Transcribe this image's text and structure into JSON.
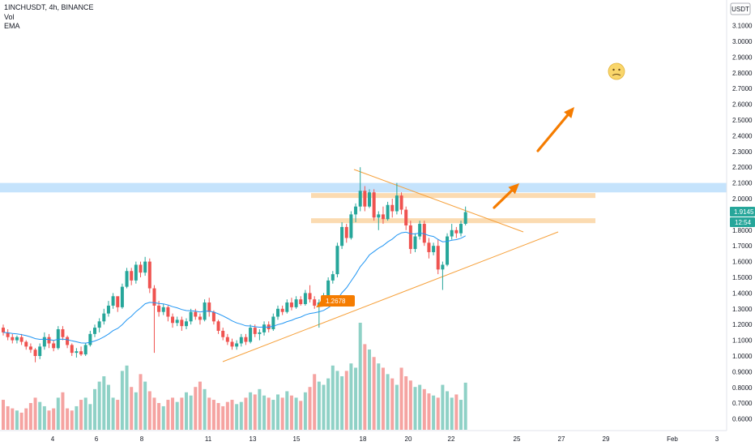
{
  "header": {
    "symbol_line": "1INCHUSDT, 4h, BINANCE",
    "indicator_vol": "Vol",
    "indicator_ema": "EMA"
  },
  "price_scale": {
    "currency": "USDT",
    "ticks": [
      "3.1000",
      "3.0000",
      "2.9000",
      "2.8000",
      "2.7000",
      "2.6000",
      "2.5000",
      "2.4000",
      "2.3000",
      "2.2000",
      "2.1000",
      "2.0000",
      "1.8000",
      "1.7000",
      "1.6000",
      "1.5000",
      "1.4000",
      "1.3000",
      "1.2000",
      "1.1000",
      "1.0000",
      "0.9000",
      "0.8000",
      "0.7000",
      "0.6000"
    ]
  },
  "time_scale": {
    "ticks": [
      "4",
      "6",
      "8",
      "11",
      "13",
      "15",
      "18",
      "20",
      "22",
      "25",
      "27",
      "29",
      "Feb",
      "3"
    ]
  },
  "badges": {
    "last_price": "1.9145",
    "countdown": "12:54",
    "marked_price": "1.2678"
  },
  "colors": {
    "up": "#26a69a",
    "down": "#ef5350",
    "vol_up": "#8fd1c6",
    "vol_down": "#f5a3a1",
    "ema": "#2196f3",
    "drawing": "#f6a03a",
    "arrow": "#f57c00",
    "zone_blue": "#bbdefb",
    "zone_orange": "#fbd7a8"
  },
  "icons": {
    "emoji": "cold-sweat-smiley-icon"
  },
  "chart_data": {
    "type": "candlestick",
    "symbol": "1INCHUSDT",
    "interval": "4h",
    "exchange": "BINANCE",
    "x_axis_ticks": [
      "4",
      "6",
      "8",
      "11",
      "13",
      "15",
      "18",
      "20",
      "22",
      "25",
      "27",
      "29",
      "Feb",
      "3"
    ],
    "y_range": [
      0.55,
      3.2
    ],
    "last_price": 1.9145,
    "marked_price": 1.2678,
    "resistance_zone": [
      2.04,
      2.1
    ],
    "horizontal_levels": [
      2.02,
      1.86
    ],
    "candles_ohlc": [
      [
        1.18,
        1.2,
        1.13,
        1.15
      ],
      [
        1.15,
        1.17,
        1.1,
        1.12
      ],
      [
        1.12,
        1.14,
        1.08,
        1.1
      ],
      [
        1.1,
        1.13,
        1.08,
        1.12
      ],
      [
        1.12,
        1.14,
        1.07,
        1.09
      ],
      [
        1.09,
        1.1,
        1.04,
        1.06
      ],
      [
        1.06,
        1.08,
        1.02,
        1.04
      ],
      [
        1.04,
        1.05,
        0.96,
        1.0
      ],
      [
        1.0,
        1.08,
        0.98,
        1.06
      ],
      [
        1.06,
        1.15,
        1.04,
        1.12
      ],
      [
        1.12,
        1.14,
        1.05,
        1.08
      ],
      [
        1.08,
        1.1,
        1.03,
        1.05
      ],
      [
        1.05,
        1.19,
        1.04,
        1.17
      ],
      [
        1.17,
        1.19,
        1.1,
        1.12
      ],
      [
        1.12,
        1.13,
        1.05,
        1.07
      ],
      [
        1.07,
        1.08,
        1.0,
        1.02
      ],
      [
        1.02,
        1.05,
        0.99,
        1.03
      ],
      [
        1.03,
        1.06,
        1.0,
        1.01
      ],
      [
        1.01,
        1.08,
        1.0,
        1.07
      ],
      [
        1.07,
        1.16,
        1.06,
        1.14
      ],
      [
        1.14,
        1.2,
        1.12,
        1.18
      ],
      [
        1.18,
        1.24,
        1.15,
        1.22
      ],
      [
        1.22,
        1.3,
        1.2,
        1.27
      ],
      [
        1.27,
        1.35,
        1.25,
        1.32
      ],
      [
        1.32,
        1.4,
        1.3,
        1.38
      ],
      [
        1.38,
        1.36,
        1.28,
        1.31
      ],
      [
        1.31,
        1.46,
        1.3,
        1.44
      ],
      [
        1.44,
        1.56,
        1.43,
        1.54
      ],
      [
        1.54,
        1.56,
        1.45,
        1.48
      ],
      [
        1.48,
        1.6,
        1.46,
        1.58
      ],
      [
        1.58,
        1.6,
        1.5,
        1.53
      ],
      [
        1.53,
        1.63,
        1.51,
        1.6
      ],
      [
        1.6,
        1.62,
        1.4,
        1.43
      ],
      [
        1.43,
        1.45,
        1.02,
        1.32
      ],
      [
        1.32,
        1.35,
        1.25,
        1.28
      ],
      [
        1.28,
        1.33,
        1.26,
        1.31
      ],
      [
        1.31,
        1.32,
        1.22,
        1.25
      ],
      [
        1.25,
        1.27,
        1.18,
        1.21
      ],
      [
        1.21,
        1.25,
        1.19,
        1.23
      ],
      [
        1.23,
        1.25,
        1.16,
        1.19
      ],
      [
        1.19,
        1.24,
        1.17,
        1.22
      ],
      [
        1.22,
        1.3,
        1.2,
        1.28
      ],
      [
        1.28,
        1.3,
        1.23,
        1.25
      ],
      [
        1.25,
        1.27,
        1.2,
        1.23
      ],
      [
        1.23,
        1.36,
        1.22,
        1.34
      ],
      [
        1.34,
        1.37,
        1.25,
        1.28
      ],
      [
        1.28,
        1.29,
        1.2,
        1.22
      ],
      [
        1.22,
        1.23,
        1.14,
        1.16
      ],
      [
        1.16,
        1.18,
        1.1,
        1.12
      ],
      [
        1.12,
        1.14,
        1.07,
        1.09
      ],
      [
        1.09,
        1.11,
        1.04,
        1.06
      ],
      [
        1.06,
        1.1,
        1.04,
        1.08
      ],
      [
        1.08,
        1.14,
        1.06,
        1.12
      ],
      [
        1.12,
        1.14,
        1.07,
        1.09
      ],
      [
        1.09,
        1.2,
        1.08,
        1.18
      ],
      [
        1.18,
        1.2,
        1.12,
        1.14
      ],
      [
        1.14,
        1.17,
        1.1,
        1.15
      ],
      [
        1.15,
        1.22,
        1.13,
        1.2
      ],
      [
        1.2,
        1.22,
        1.15,
        1.17
      ],
      [
        1.17,
        1.27,
        1.16,
        1.25
      ],
      [
        1.25,
        1.32,
        1.23,
        1.3
      ],
      [
        1.3,
        1.32,
        1.26,
        1.28
      ],
      [
        1.28,
        1.36,
        1.27,
        1.34
      ],
      [
        1.34,
        1.37,
        1.29,
        1.31
      ],
      [
        1.31,
        1.38,
        1.3,
        1.36
      ],
      [
        1.36,
        1.38,
        1.32,
        1.33
      ],
      [
        1.33,
        1.42,
        1.32,
        1.4
      ],
      [
        1.4,
        1.45,
        1.34,
        1.36
      ],
      [
        1.36,
        1.38,
        1.3,
        1.32
      ],
      [
        1.32,
        1.36,
        1.18,
        1.34
      ],
      [
        1.34,
        1.4,
        1.33,
        1.38
      ],
      [
        1.38,
        1.5,
        1.37,
        1.48
      ],
      [
        1.48,
        1.54,
        1.46,
        1.52
      ],
      [
        1.52,
        1.72,
        1.5,
        1.7
      ],
      [
        1.7,
        1.85,
        1.68,
        1.82
      ],
      [
        1.82,
        1.84,
        1.72,
        1.75
      ],
      [
        1.75,
        1.92,
        1.74,
        1.9
      ],
      [
        1.9,
        1.97,
        1.85,
        1.95
      ],
      [
        1.95,
        2.2,
        1.92,
        2.05
      ],
      [
        2.05,
        2.08,
        1.92,
        1.95
      ],
      [
        1.95,
        2.06,
        1.94,
        2.04
      ],
      [
        2.04,
        2.06,
        1.86,
        1.88
      ],
      [
        1.88,
        1.92,
        1.8,
        1.9
      ],
      [
        1.9,
        1.95,
        1.84,
        1.87
      ],
      [
        1.87,
        1.98,
        1.86,
        1.96
      ],
      [
        1.96,
        2.0,
        1.88,
        1.92
      ],
      [
        1.92,
        2.1,
        1.9,
        2.02
      ],
      [
        2.02,
        2.04,
        1.9,
        1.93
      ],
      [
        1.93,
        1.95,
        1.8,
        1.83
      ],
      [
        1.83,
        1.86,
        1.65,
        1.68
      ],
      [
        1.68,
        1.78,
        1.66,
        1.76
      ],
      [
        1.76,
        1.86,
        1.74,
        1.84
      ],
      [
        1.84,
        1.86,
        1.7,
        1.72
      ],
      [
        1.72,
        1.75,
        1.62,
        1.66
      ],
      [
        1.66,
        1.72,
        1.64,
        1.7
      ],
      [
        1.7,
        1.74,
        1.52,
        1.55
      ],
      [
        1.55,
        1.6,
        1.42,
        1.58
      ],
      [
        1.58,
        1.78,
        1.57,
        1.76
      ],
      [
        1.76,
        1.84,
        1.74,
        1.8
      ],
      [
        1.8,
        1.82,
        1.75,
        1.78
      ],
      [
        1.78,
        1.86,
        1.76,
        1.84
      ],
      [
        1.84,
        1.95,
        1.83,
        1.9145
      ]
    ],
    "volume_relative": [
      0.28,
      0.22,
      0.2,
      0.18,
      0.16,
      0.2,
      0.25,
      0.3,
      0.26,
      0.22,
      0.18,
      0.2,
      0.3,
      0.35,
      0.2,
      0.18,
      0.22,
      0.28,
      0.3,
      0.24,
      0.38,
      0.45,
      0.5,
      0.42,
      0.3,
      0.28,
      0.55,
      0.6,
      0.4,
      0.35,
      0.52,
      0.45,
      0.36,
      0.3,
      0.25,
      0.22,
      0.28,
      0.3,
      0.26,
      0.3,
      0.35,
      0.32,
      0.4,
      0.45,
      0.38,
      0.3,
      0.28,
      0.25,
      0.22,
      0.26,
      0.28,
      0.24,
      0.26,
      0.3,
      0.35,
      0.33,
      0.38,
      0.32,
      0.3,
      0.28,
      0.33,
      0.3,
      0.36,
      0.32,
      0.3,
      0.27,
      0.35,
      0.4,
      0.52,
      0.45,
      0.42,
      0.48,
      0.6,
      0.55,
      0.5,
      0.55,
      0.62,
      0.58,
      1.0,
      0.8,
      0.75,
      0.68,
      0.62,
      0.58,
      0.52,
      0.48,
      0.42,
      0.58,
      0.5,
      0.46,
      0.4,
      0.42,
      0.38,
      0.34,
      0.32,
      0.3,
      0.42,
      0.36,
      0.3,
      0.33,
      0.28,
      0.44
    ]
  }
}
